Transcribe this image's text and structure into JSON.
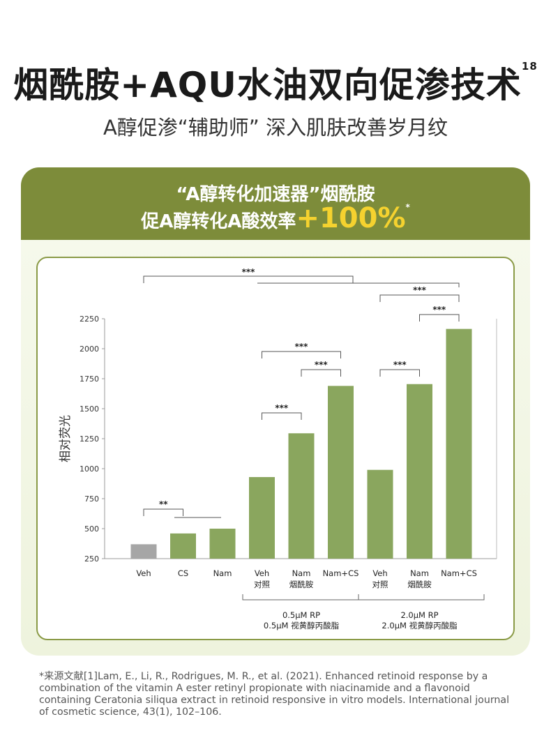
{
  "header": {
    "title": "烟酰胺+AQU水油双向促渗技术",
    "title_sup": "18",
    "subtitle": "A醇促渗“辅助师” 深入肌肤改善岁月纹"
  },
  "card": {
    "line1": "“A醇转化加速器”烟酰胺",
    "line2": "促A醇转化A酸效率",
    "highlight": "+100%",
    "highlight_note": "*",
    "colors": {
      "header_bg": "#7d8c3a",
      "highlight": "#f5d22f",
      "bar": "#8aa65e",
      "bar_control": "#a6a6a6"
    }
  },
  "chart_data": {
    "type": "bar",
    "ylabel": "相对荧光",
    "ylim": [
      250,
      2250
    ],
    "yticks": [
      250,
      500,
      750,
      1000,
      1250,
      1500,
      1750,
      2000,
      2250
    ],
    "categories": [
      {
        "label": "Veh",
        "sub": ""
      },
      {
        "label": "CS",
        "sub": ""
      },
      {
        "label": "Nam",
        "sub": ""
      },
      {
        "label": "Veh",
        "sub": "对照"
      },
      {
        "label": "Nam",
        "sub": "烟酰胺"
      },
      {
        "label": "Nam+CS",
        "sub": ""
      },
      {
        "label": "Veh",
        "sub": "对照"
      },
      {
        "label": "Nam",
        "sub": "烟酰胺"
      },
      {
        "label": "Nam+CS",
        "sub": ""
      }
    ],
    "values": [
      370,
      460,
      500,
      930,
      1295,
      1690,
      990,
      1705,
      2165
    ],
    "control_index": 0,
    "groups": [
      {
        "label1": "0.5μM RP",
        "label2": "0.5μM 视黄醇丙酸脂",
        "from": 3,
        "to": 5
      },
      {
        "label1": "2.0μM RP",
        "label2": "2.0μM 视黄醇丙酸脂",
        "from": 6,
        "to": 8
      }
    ],
    "significance": [
      {
        "from": 0,
        "to": 1,
        "label": "**"
      },
      {
        "from": 3,
        "to": 4,
        "label": "***"
      },
      {
        "from": 3,
        "to": 5,
        "label": "***"
      },
      {
        "from": 4,
        "to": 5,
        "label": "***"
      },
      {
        "from": 6,
        "to": 7,
        "label": "***"
      },
      {
        "from": 7,
        "to": 8,
        "label": "***"
      },
      {
        "from": 6,
        "to": 8,
        "label": "***"
      },
      {
        "from": 0,
        "to": 8,
        "label": "***"
      }
    ]
  },
  "reference": "*来源文献[1]Lam, E., Li, R., Rodrigues, M. R., et al. (2021). Enhanced retinoid response by a combination of the vitamin A ester retinyl propionate with niacinamide and a flavonoid containing Ceratonia siliqua extract in retinoid responsive in vitro models. International journal of cosmetic science, 43(1), 102–106."
}
